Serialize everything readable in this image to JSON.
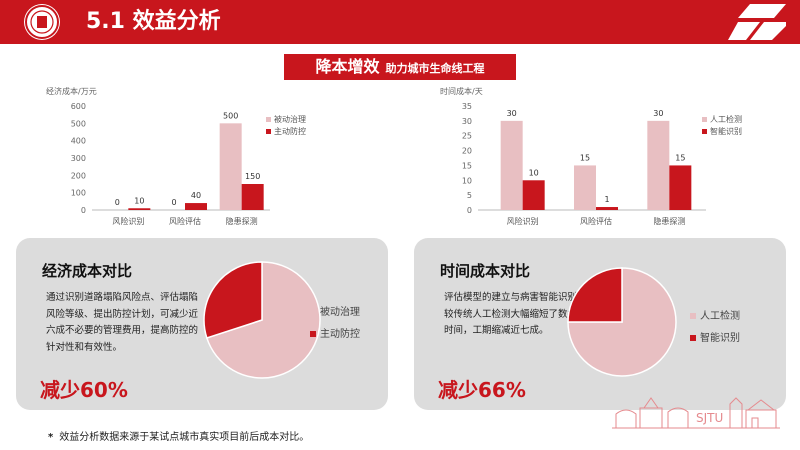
{
  "header": {
    "title": "5.1 效益分析"
  },
  "banner": {
    "big": "降本增效",
    "small": "助力城市生命线工程"
  },
  "colors": {
    "brand": "#c8161d",
    "passive": "#e8bfc2",
    "active": "#c8161d",
    "card": "#dcdcdc"
  },
  "charts": [
    {
      "unit_label": "经济成本/万元",
      "categories": [
        "风险识别",
        "风险评估",
        "隐患探测"
      ],
      "y_ticks": [
        "0",
        "100",
        "200",
        "300",
        "400",
        "500",
        "600"
      ],
      "series": [
        {
          "name": "被动治理",
          "values": [
            0,
            0,
            500
          ],
          "labels": [
            "0",
            "0",
            "500"
          ]
        },
        {
          "name": "主动防控",
          "values": [
            10,
            40,
            150
          ],
          "labels": [
            "10",
            "40",
            "150"
          ]
        }
      ]
    },
    {
      "unit_label": "时间成本/天",
      "categories": [
        "风险识别",
        "风险评估",
        "隐患探测"
      ],
      "y_ticks": [
        "0",
        "5",
        "10",
        "15",
        "20",
        "25",
        "30",
        "35"
      ],
      "series": [
        {
          "name": "人工检测",
          "values": [
            30,
            15,
            30
          ],
          "labels": [
            "30",
            "15",
            "30"
          ]
        },
        {
          "name": "智能识别",
          "values": [
            10,
            1,
            15
          ],
          "labels": [
            "10",
            "1",
            "15"
          ]
        }
      ]
    }
  ],
  "chart_data": [
    {
      "type": "bar",
      "categories": [
        "风险识别",
        "风险评估",
        "隐患探测"
      ],
      "series": [
        {
          "name": "被动治理",
          "values": [
            0,
            0,
            500
          ]
        },
        {
          "name": "主动防控",
          "values": [
            10,
            40,
            150
          ]
        }
      ],
      "ylabel": "经济成本/万元",
      "ylim": [
        0,
        600
      ],
      "legend": "right"
    },
    {
      "type": "bar",
      "categories": [
        "风险识别",
        "风险评估",
        "隐患探测"
      ],
      "series": [
        {
          "name": "人工检测",
          "values": [
            30,
            15,
            30
          ]
        },
        {
          "name": "智能识别",
          "values": [
            10,
            1,
            15
          ]
        }
      ],
      "ylabel": "时间成本/天",
      "ylim": [
        0,
        35
      ],
      "legend": "right"
    },
    {
      "type": "pie",
      "labels": [
        "被动治理",
        "主动防控"
      ],
      "values": [
        70,
        30
      ]
    },
    {
      "type": "pie",
      "labels": [
        "人工检测",
        "智能识别"
      ],
      "values": [
        75,
        25
      ]
    }
  ],
  "cards": [
    {
      "title": "经济成本对比",
      "body": "通过识别道路塌陷风险点、评估塌陷风险等级、提出防控计划，可减少近六成不必要的管理费用，提高防控的针对性和有效性。",
      "result": "减少60%",
      "pie_labels": [
        "被动治理",
        "主动防控"
      ],
      "pie_values": [
        70,
        30
      ]
    },
    {
      "title": "时间成本对比",
      "body": "评估模型的建立与病害智能识别应用较传统人工检测大幅缩短了数据分析时间，工期缩减近七成。",
      "result": "减少66%",
      "pie_labels": [
        "人工检测",
        "智能识别"
      ],
      "pie_values": [
        75,
        25
      ]
    }
  ],
  "footnote": {
    "star": "*",
    "text": "效益分析数据来源于某试点城市真实项目前后成本对比。"
  },
  "deco": {
    "text": "SJTU"
  }
}
